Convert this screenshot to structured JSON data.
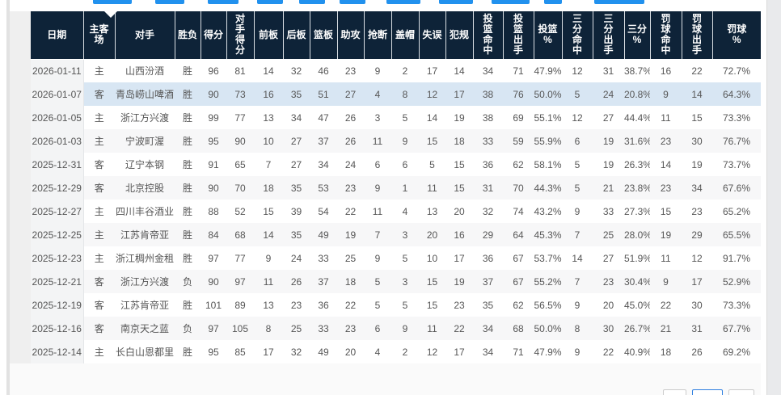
{
  "colors": {
    "header_bg": "#0e2338",
    "header_text": "#ffffff",
    "row_alt_bg": "#f7f7f8",
    "row_highlight_bg": "#d8e6f3",
    "tab_indicator_blue": "#2191ee",
    "pager_active_border": "#2f7fe0",
    "body_text": "#565656"
  },
  "table": {
    "columns": [
      {
        "label": "日期"
      },
      {
        "label": "主客\n场"
      },
      {
        "label": "对手"
      },
      {
        "label": "胜负"
      },
      {
        "label": "得分"
      },
      {
        "label": "对\n手\n得\n分"
      },
      {
        "label": "前板"
      },
      {
        "label": "后板"
      },
      {
        "label": "篮板"
      },
      {
        "label": "助攻"
      },
      {
        "label": "抢断"
      },
      {
        "label": "盖帽"
      },
      {
        "label": "失误"
      },
      {
        "label": "犯规"
      },
      {
        "label": "投\n篮\n命\n中"
      },
      {
        "label": "投\n篮\n出\n手"
      },
      {
        "label": "投篮\n%"
      },
      {
        "label": "三\n分\n命\n中"
      },
      {
        "label": "三\n分\n出\n手"
      },
      {
        "label": "三分\n%"
      },
      {
        "label": "罚\n球\n命\n中"
      },
      {
        "label": "罚\n球\n出\n手"
      },
      {
        "label": "罚球\n%"
      }
    ],
    "highlighted_row_index": 1,
    "rows": [
      [
        "2026-01-11",
        "主",
        "山西汾酒",
        "胜",
        "96",
        "81",
        "14",
        "32",
        "46",
        "23",
        "9",
        "2",
        "17",
        "14",
        "34",
        "71",
        "47.9%",
        "12",
        "31",
        "38.7%",
        "16",
        "22",
        "72.7%"
      ],
      [
        "2026-01-07",
        "客",
        "青岛崂山啤酒",
        "胜",
        "90",
        "73",
        "16",
        "35",
        "51",
        "27",
        "4",
        "8",
        "12",
        "17",
        "38",
        "76",
        "50.0%",
        "5",
        "24",
        "20.8%",
        "9",
        "14",
        "64.3%"
      ],
      [
        "2026-01-05",
        "主",
        "浙江方兴渡",
        "胜",
        "99",
        "77",
        "13",
        "34",
        "47",
        "26",
        "3",
        "5",
        "14",
        "19",
        "38",
        "69",
        "55.1%",
        "12",
        "27",
        "44.4%",
        "11",
        "15",
        "73.3%"
      ],
      [
        "2026-01-03",
        "主",
        "宁波町渥",
        "胜",
        "95",
        "90",
        "10",
        "27",
        "37",
        "26",
        "11",
        "9",
        "15",
        "18",
        "33",
        "59",
        "55.9%",
        "6",
        "19",
        "31.6%",
        "23",
        "30",
        "76.7%"
      ],
      [
        "2025-12-31",
        "客",
        "辽宁本钢",
        "胜",
        "91",
        "65",
        "7",
        "27",
        "34",
        "24",
        "6",
        "6",
        "5",
        "15",
        "36",
        "62",
        "58.1%",
        "5",
        "19",
        "26.3%",
        "14",
        "19",
        "73.7%"
      ],
      [
        "2025-12-29",
        "客",
        "北京控股",
        "胜",
        "90",
        "70",
        "18",
        "35",
        "53",
        "23",
        "9",
        "1",
        "11",
        "15",
        "31",
        "70",
        "44.3%",
        "5",
        "21",
        "23.8%",
        "23",
        "34",
        "67.6%"
      ],
      [
        "2025-12-27",
        "主",
        "四川丰谷酒业",
        "胜",
        "88",
        "52",
        "15",
        "39",
        "54",
        "22",
        "11",
        "4",
        "13",
        "20",
        "32",
        "74",
        "43.2%",
        "9",
        "33",
        "27.3%",
        "15",
        "23",
        "65.2%"
      ],
      [
        "2025-12-25",
        "主",
        "江苏肯帝亚",
        "胜",
        "84",
        "68",
        "14",
        "35",
        "49",
        "19",
        "7",
        "3",
        "20",
        "16",
        "29",
        "64",
        "45.3%",
        "7",
        "25",
        "28.0%",
        "19",
        "29",
        "65.5%"
      ],
      [
        "2025-12-23",
        "主",
        "浙江稠州金租",
        "胜",
        "97",
        "77",
        "9",
        "24",
        "33",
        "25",
        "9",
        "5",
        "10",
        "17",
        "36",
        "67",
        "53.7%",
        "14",
        "27",
        "51.9%",
        "11",
        "12",
        "91.7%"
      ],
      [
        "2025-12-21",
        "客",
        "浙江方兴渡",
        "负",
        "90",
        "97",
        "11",
        "26",
        "37",
        "18",
        "5",
        "3",
        "15",
        "19",
        "37",
        "67",
        "55.2%",
        "7",
        "23",
        "30.4%",
        "9",
        "17",
        "52.9%"
      ],
      [
        "2025-12-19",
        "客",
        "江苏肯帝亚",
        "胜",
        "101",
        "89",
        "13",
        "23",
        "36",
        "22",
        "5",
        "5",
        "15",
        "23",
        "35",
        "62",
        "56.5%",
        "9",
        "20",
        "45.0%",
        "22",
        "30",
        "73.3%"
      ],
      [
        "2025-12-16",
        "客",
        "南京天之蓝",
        "负",
        "97",
        "105",
        "8",
        "25",
        "33",
        "23",
        "6",
        "9",
        "11",
        "22",
        "34",
        "68",
        "50.0%",
        "8",
        "30",
        "26.7%",
        "21",
        "31",
        "67.7%"
      ],
      [
        "2025-12-14",
        "主",
        "长白山恩都里",
        "胜",
        "95",
        "85",
        "17",
        "32",
        "49",
        "20",
        "4",
        "2",
        "12",
        "17",
        "34",
        "71",
        "47.9%",
        "9",
        "22",
        "40.9%",
        "18",
        "26",
        "69.2%"
      ]
    ]
  }
}
